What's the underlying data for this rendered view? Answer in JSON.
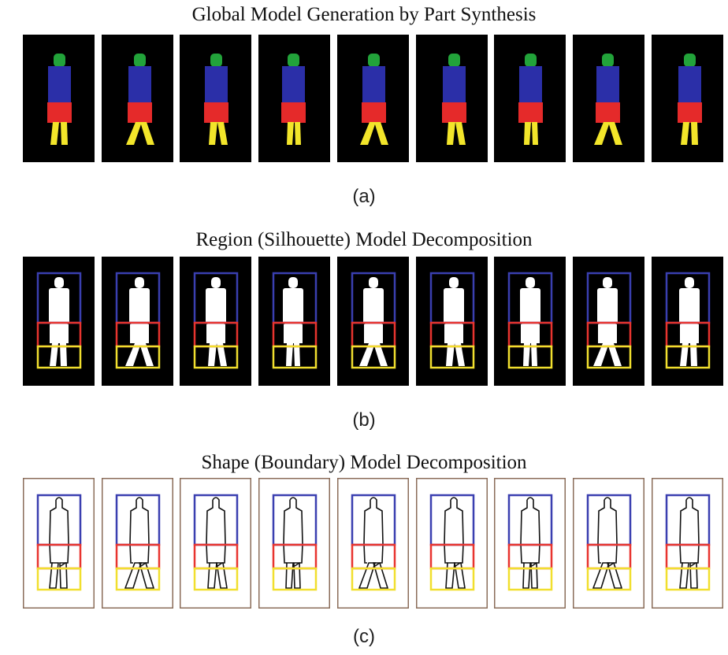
{
  "panel_a": {
    "title": "Global Model Generation by Part Synthesis",
    "caption": "(a)"
  },
  "panel_b": {
    "title": "Region (Silhouette) Model Decomposition",
    "caption": "(b)"
  },
  "panel_c": {
    "title": "Shape (Boundary) Model Decomposition",
    "caption": "(c)"
  },
  "colors": {
    "head": "#22a33a",
    "torso": "#2b2fa8",
    "hips": "#e52a2a",
    "legs": "#f2e52a",
    "frame_dark": "#000000",
    "frame_border": "#8b6d5a",
    "silhouette": "#ffffff",
    "box_top": "#3a3fb0",
    "box_mid": "#e8342f",
    "box_bottom": "#f1df2e"
  },
  "frames": [
    {
      "lean": 0,
      "gait": "cross"
    },
    {
      "lean": 1,
      "gait": "wide"
    },
    {
      "lean": 0,
      "gait": "step"
    },
    {
      "lean": -1,
      "gait": "narrow"
    },
    {
      "lean": 0,
      "gait": "wide"
    },
    {
      "lean": 1,
      "gait": "step"
    },
    {
      "lean": 0,
      "gait": "narrow"
    },
    {
      "lean": -1,
      "gait": "wide"
    },
    {
      "lean": 1,
      "gait": "cross"
    }
  ]
}
